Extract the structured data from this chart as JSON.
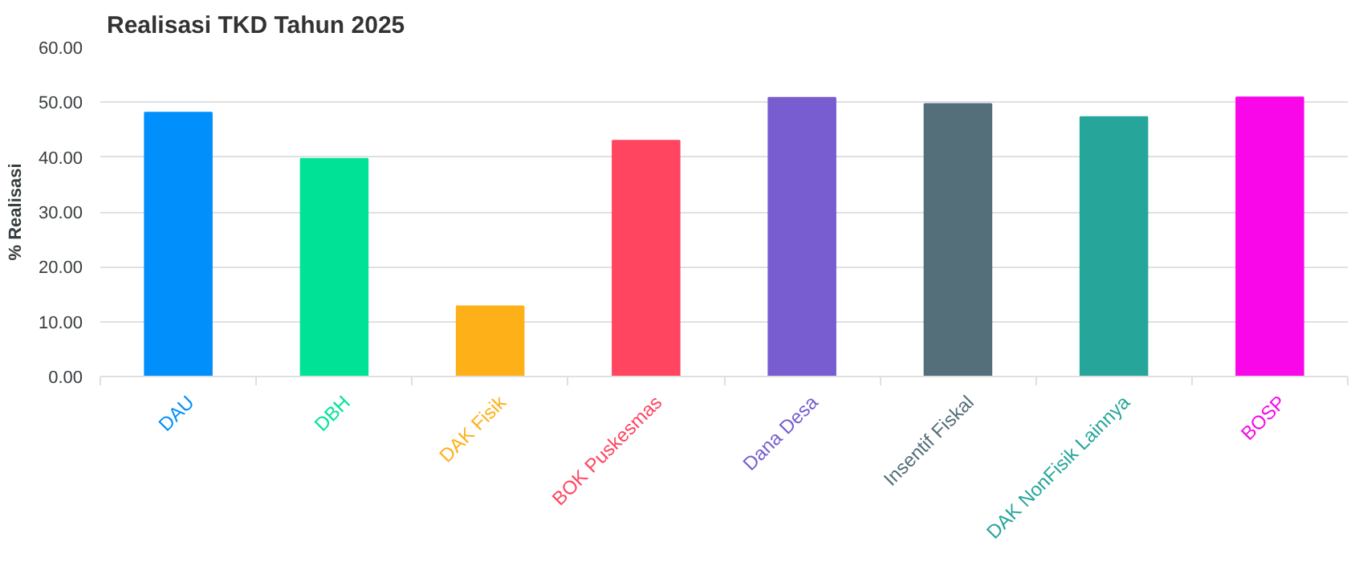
{
  "chart_data": {
    "type": "bar",
    "title": "Realisasi TKD Tahun 2025",
    "ylabel": "% Realisasi",
    "categories": [
      "DAU",
      "DBH",
      "DAK Fisik",
      "BOK Puskesmas",
      "Dana Desa",
      "Insentif Fiskal",
      "DAK NonFisik Lainnya",
      "BOSP"
    ],
    "values": [
      48.1,
      39.7,
      12.8,
      43.0,
      50.8,
      49.7,
      47.3,
      50.9
    ],
    "colors": [
      "#008ffb",
      "#00e396",
      "#feb019",
      "#ff4560",
      "#775dd0",
      "#546e7a",
      "#26a69a",
      "#f906e9"
    ],
    "ylim": [
      0,
      60
    ],
    "yticks": [
      {
        "value": 0,
        "label": "0.00"
      },
      {
        "value": 10,
        "label": "10.00"
      },
      {
        "value": 20,
        "label": "20.00"
      },
      {
        "value": 30,
        "label": "30.00"
      },
      {
        "value": 40,
        "label": "40.00"
      },
      {
        "value": 50,
        "label": "50.00"
      },
      {
        "value": 60,
        "label": "60.00"
      }
    ],
    "grid": "y"
  }
}
